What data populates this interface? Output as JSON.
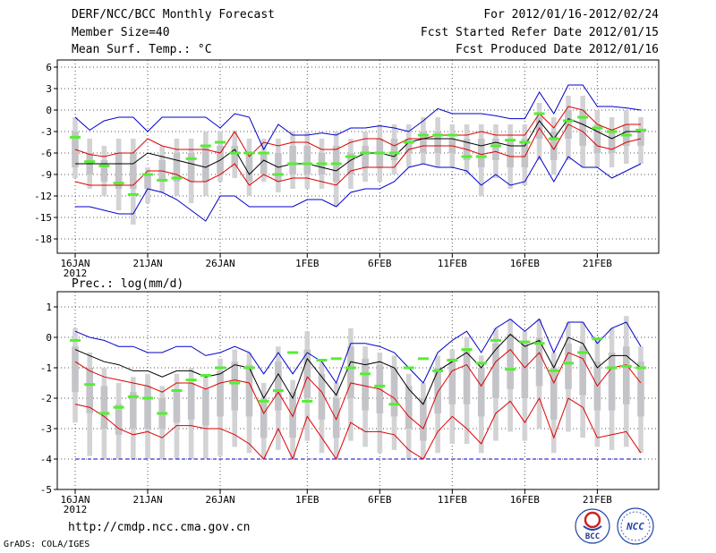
{
  "header": {
    "title": "DERF/NCC/BCC Monthly Forecast",
    "member_size": "Member Size=40",
    "variable": "Mean Surf. Temp.: °C",
    "for_range": "For 2012/01/16-2012/02/24",
    "started": "Fcst Started Refer Date 2012/01/15",
    "produced": "Fcst Produced Date 2012/01/16"
  },
  "footer": {
    "url": "http://cmdp.ncc.cma.gov.cn",
    "grads": "GrADS: COLA/IGES",
    "logo_bcc": "BCC",
    "logo_ncc": "NCC"
  },
  "colors": {
    "box": "#d3d3d6",
    "green": "#55ee33",
    "blue": "#0000cc",
    "red": "#dd0000",
    "black": "#000000",
    "grid": "#555555"
  },
  "chart_data": [
    {
      "type": "line",
      "title": "Mean Surf. Temp.: °C",
      "xlabel": "",
      "ylabel": "°C",
      "ylim": [
        -20,
        7
      ],
      "yticks": [
        6,
        3,
        0,
        -3,
        -6,
        -9,
        -12,
        -15,
        -18
      ],
      "x_ticks": [
        {
          "day": 0,
          "label": "16JAN",
          "sub": "2012"
        },
        {
          "day": 5,
          "label": "21JAN",
          "sub": ""
        },
        {
          "day": 10,
          "label": "26JAN",
          "sub": ""
        },
        {
          "day": 16,
          "label": "1FEB",
          "sub": ""
        },
        {
          "day": 21,
          "label": "6FEB",
          "sub": ""
        },
        {
          "day": 26,
          "label": "11FEB",
          "sub": ""
        },
        {
          "day": 31,
          "label": "16FEB",
          "sub": ""
        },
        {
          "day": 36,
          "label": "21FEB",
          "sub": ""
        }
      ],
      "days": [
        0,
        1,
        2,
        3,
        4,
        5,
        6,
        7,
        8,
        9,
        10,
        11,
        12,
        13,
        14,
        15,
        16,
        17,
        18,
        19,
        20,
        21,
        22,
        23,
        24,
        25,
        26,
        27,
        28,
        29,
        30,
        31,
        32,
        33,
        34,
        35,
        36,
        37,
        38,
        39
      ],
      "blue_upper": [
        -1,
        -2.8,
        -1.5,
        -1,
        -1,
        -3,
        -1,
        -1,
        -1,
        -1,
        -2.5,
        -0.5,
        -1,
        -5.5,
        -2,
        -3.5,
        -3.5,
        -3.2,
        -3.5,
        -2.5,
        -2.5,
        -2.2,
        -2.5,
        -3,
        -1.5,
        0.2,
        -0.5,
        -0.5,
        -0.5,
        -0.8,
        -1.2,
        -1.2,
        2.5,
        -0.5,
        3.5,
        3.5,
        0.5,
        0.5,
        0.3,
        0
      ],
      "red_upper": [
        -5.5,
        -6.2,
        -6.5,
        -6,
        -6,
        -4,
        -5,
        -5.5,
        -5.5,
        -5.5,
        -6,
        -3,
        -6.5,
        -4.5,
        -5,
        -4.5,
        -4.5,
        -5.5,
        -5.5,
        -4.5,
        -4,
        -4,
        -5,
        -4,
        -4,
        -3.5,
        -3.5,
        -3.5,
        -3,
        -3.5,
        -3.5,
        -3.5,
        -0.5,
        -2.5,
        0.5,
        0,
        -2,
        -2.8,
        -2,
        -2
      ],
      "black_mean": [
        -7.5,
        -7.5,
        -7.5,
        -7.5,
        -7.5,
        -6,
        -6.5,
        -7,
        -7.5,
        -8,
        -7,
        -5.5,
        -9,
        -7,
        -8,
        -7.5,
        -7.5,
        -8,
        -8.5,
        -7,
        -6,
        -6,
        -6.5,
        -4.5,
        -4,
        -4,
        -4,
        -4.5,
        -5,
        -4.5,
        -5,
        -5,
        -1.5,
        -4,
        -1.2,
        -2,
        -3,
        -4,
        -3,
        -3
      ],
      "red_lower": [
        -10,
        -10.5,
        -10.5,
        -10.5,
        -10.5,
        -8.5,
        -8.5,
        -9,
        -10,
        -10,
        -9,
        -7.5,
        -10.5,
        -9,
        -10,
        -9.5,
        -9.5,
        -10,
        -10.5,
        -8.5,
        -8,
        -8,
        -8,
        -5.5,
        -5,
        -5,
        -5,
        -5.5,
        -6.2,
        -5.8,
        -6.5,
        -6.5,
        -2.5,
        -5.5,
        -2,
        -3,
        -5,
        -5.5,
        -4.5,
        -4
      ],
      "blue_lower": [
        -13.5,
        -13.5,
        -14,
        -14.5,
        -14.5,
        -11,
        -11.5,
        -12.5,
        -14,
        -15.5,
        -12,
        -12,
        -13.5,
        -13.5,
        -13.5,
        -13.5,
        -12.5,
        -12.5,
        -13.5,
        -11.5,
        -11,
        -11,
        -10,
        -8,
        -7.5,
        -8,
        -8,
        -8.5,
        -10.5,
        -9,
        -10.5,
        -10,
        -6.5,
        -10,
        -6.5,
        -8,
        -8,
        -9.5,
        -8.5,
        -7.5
      ],
      "box_outer_top": [
        -1,
        -4,
        -5,
        -4,
        -4,
        -8,
        -5,
        -4,
        -4,
        -3,
        -3,
        -3,
        -4,
        -4,
        -4,
        -3,
        -3,
        -4,
        -3,
        -4,
        -3,
        -2,
        -2,
        -2,
        -1,
        -1,
        -2,
        -2,
        -2,
        -2,
        -2,
        -2,
        1,
        -1,
        2,
        2,
        0,
        -1,
        0,
        -1
      ],
      "box_inner_top": [
        -3,
        -6,
        -7,
        -6,
        -6,
        -9,
        -7,
        -6,
        -6,
        -5,
        -5,
        -5,
        -6,
        -6,
        -6,
        -5,
        -5,
        -6,
        -5,
        -6,
        -5,
        -4,
        -4,
        -4,
        -3,
        -3,
        -4,
        -4,
        -4,
        -4,
        -4,
        -4,
        -1,
        -3,
        0,
        0,
        -2,
        -3,
        -2,
        -3
      ],
      "box_inner_bottom": [
        -8,
        -9,
        -10,
        -11,
        -11,
        -11,
        -10,
        -10,
        -10,
        -10,
        -9,
        -8,
        -10,
        -9,
        -10,
        -9,
        -9,
        -9,
        -10,
        -9,
        -8,
        -8,
        -7,
        -6,
        -6,
        -6,
        -6,
        -7,
        -8,
        -7,
        -8,
        -8,
        -4,
        -7,
        -4,
        -5,
        -6,
        -6,
        -5,
        -5
      ],
      "box_outer_bottom": [
        -9.5,
        -11,
        -12,
        -14,
        -16,
        -13,
        -11.5,
        -12,
        -13,
        -12,
        -10,
        -9.5,
        -12,
        -10,
        -11.5,
        -11,
        -11,
        -11,
        -13.5,
        -11,
        -10,
        -10,
        -9,
        -8,
        -7.5,
        -8,
        -8,
        -9,
        -12,
        -9.5,
        -11,
        -10.5,
        -7,
        -9,
        -7,
        -8,
        -8,
        -8,
        -7.5,
        -7.5
      ],
      "green_marks": [
        -3.8,
        -7.2,
        -7.8,
        -10.2,
        -11.8,
        -9,
        -9.8,
        -9.5,
        -6.8,
        -5,
        -4.5,
        -6,
        -6,
        -6,
        -9,
        -7.5,
        -7.5,
        -7.5,
        -7.5,
        -6.5,
        -6,
        -6,
        -6,
        -4.5,
        -3.5,
        -3.5,
        -3.5,
        -6.5,
        -6.5,
        -5,
        -4.2,
        -4.5,
        -0.5,
        -4,
        -1.5,
        -1,
        -2.5,
        -3,
        -3.5,
        -2.8
      ]
    },
    {
      "type": "line",
      "title": "Prec.: log(mm/d)",
      "xlabel": "",
      "ylabel": "log(mm/d)",
      "ylim": [
        -5,
        1.5
      ],
      "yticks": [
        1,
        0,
        -1,
        -2,
        -3,
        -4,
        -5
      ],
      "x_ticks": [
        {
          "day": 0,
          "label": "16JAN",
          "sub": "2012"
        },
        {
          "day": 5,
          "label": "21JAN",
          "sub": ""
        },
        {
          "day": 10,
          "label": "26JAN",
          "sub": ""
        },
        {
          "day": 16,
          "label": "1FEB",
          "sub": ""
        },
        {
          "day": 21,
          "label": "6FEB",
          "sub": ""
        },
        {
          "day": 26,
          "label": "11FEB",
          "sub": ""
        },
        {
          "day": 31,
          "label": "16FEB",
          "sub": ""
        },
        {
          "day": 36,
          "label": "21FEB",
          "sub": ""
        }
      ],
      "days": [
        0,
        1,
        2,
        3,
        4,
        5,
        6,
        7,
        8,
        9,
        10,
        11,
        12,
        13,
        14,
        15,
        16,
        17,
        18,
        19,
        20,
        21,
        22,
        23,
        24,
        25,
        26,
        27,
        28,
        29,
        30,
        31,
        32,
        33,
        34,
        35,
        36,
        37,
        38,
        39
      ],
      "blue_upper": [
        0.2,
        0,
        -0.1,
        -0.3,
        -0.3,
        -0.5,
        -0.5,
        -0.3,
        -0.3,
        -0.6,
        -0.5,
        -0.3,
        -0.5,
        -1.2,
        -0.5,
        -1.2,
        -0.5,
        -0.8,
        -1.5,
        -0.2,
        -0.2,
        -0.3,
        -0.5,
        -1,
        -1.5,
        -0.5,
        -0.1,
        0.2,
        -0.5,
        0.3,
        0.6,
        0.2,
        0.6,
        -0.5,
        0.5,
        0.5,
        -0.2,
        0.3,
        0.5,
        -0.3
      ],
      "black_mean": [
        -0.4,
        -0.6,
        -0.8,
        -0.9,
        -1.1,
        -1.1,
        -1.3,
        -1.1,
        -1.1,
        -1.3,
        -1.2,
        -0.9,
        -1.0,
        -2.0,
        -1.2,
        -2.0,
        -0.7,
        -1.3,
        -1.9,
        -0.8,
        -0.9,
        -0.8,
        -1.0,
        -1.7,
        -2.2,
        -1.1,
        -0.8,
        -0.5,
        -1.0,
        -0.4,
        0.1,
        -0.3,
        -0.1,
        -1.0,
        0.0,
        -0.2,
        -1.0,
        -0.6,
        -0.6,
        -1.0
      ],
      "red_upper": [
        -0.8,
        -1.1,
        -1.3,
        -1.4,
        -1.5,
        -1.6,
        -1.8,
        -1.5,
        -1.5,
        -1.7,
        -1.5,
        -1.4,
        -1.5,
        -2.5,
        -1.8,
        -2.6,
        -1.3,
        -1.8,
        -2.7,
        -1.5,
        -1.6,
        -1.7,
        -2.0,
        -2.6,
        -3.0,
        -1.8,
        -1.1,
        -0.9,
        -1.6,
        -0.8,
        -0.4,
        -1.0,
        -0.5,
        -1.5,
        -0.5,
        -0.7,
        -1.6,
        -1.0,
        -0.9,
        -1.5
      ],
      "red_lower": [
        -2.2,
        -2.3,
        -2.6,
        -3.0,
        -3.2,
        -3.1,
        -3.3,
        -2.9,
        -2.9,
        -3.0,
        -3.0,
        -3.2,
        -3.5,
        -4.0,
        -3.0,
        -4.0,
        -2.6,
        -3.3,
        -4.0,
        -2.8,
        -3.1,
        -3.1,
        -3.2,
        -3.7,
        -4.0,
        -3.1,
        -2.6,
        -3.0,
        -3.5,
        -2.5,
        -2.1,
        -2.8,
        -2.0,
        -3.3,
        -2.0,
        -2.3,
        -3.3,
        -3.2,
        -3.1,
        -3.8
      ],
      "floor": -4,
      "box_outer_top": [
        0.3,
        -0.5,
        -1.0,
        -1.5,
        -1.3,
        -1.2,
        -1.6,
        -1.2,
        -1.0,
        -1.3,
        -0.7,
        -0.4,
        -0.5,
        -1.5,
        -0.3,
        -1.4,
        0.2,
        -0.8,
        -1.5,
        0.3,
        -0.3,
        -0.5,
        -0.6,
        -1.2,
        -1.5,
        -0.6,
        -0.4,
        0.0,
        -0.6,
        0.3,
        0.6,
        0.2,
        0.6,
        -0.5,
        0.5,
        0.5,
        -0.1,
        0.3,
        0.7,
        -0.3
      ],
      "box_inner_top": [
        -0.3,
        -1.0,
        -1.6,
        -2.2,
        -1.8,
        -1.6,
        -2.0,
        -1.7,
        -1.5,
        -1.7,
        -1.1,
        -0.8,
        -0.9,
        -2.0,
        -0.8,
        -1.8,
        -0.4,
        -1.2,
        -2.0,
        -0.3,
        -0.7,
        -0.9,
        -1.0,
        -1.6,
        -2.0,
        -1.0,
        -0.7,
        -0.4,
        -1.0,
        -0.2,
        0.1,
        -0.2,
        0.0,
        -1.0,
        -0.2,
        -0.3,
        -0.8,
        -0.5,
        -0.3,
        -0.8
      ],
      "box_inner_bottom": [
        -1.8,
        -2.5,
        -3.0,
        -3.2,
        -3.0,
        -3.0,
        -3.0,
        -2.8,
        -2.7,
        -2.9,
        -2.6,
        -2.4,
        -2.6,
        -3.3,
        -2.4,
        -3.3,
        -2.0,
        -2.7,
        -3.3,
        -2.0,
        -2.4,
        -2.5,
        -2.6,
        -3.0,
        -3.4,
        -2.5,
        -2.2,
        -2.2,
        -2.6,
        -2.0,
        -1.7,
        -2.0,
        -1.6,
        -2.7,
        -1.7,
        -1.9,
        -2.4,
        -2.4,
        -2.2,
        -2.6
      ],
      "box_outer_bottom": [
        -2.8,
        -3.9,
        -4.0,
        -4.0,
        -4.0,
        -4.0,
        -4.0,
        -4.0,
        -4.0,
        -4.0,
        -3.9,
        -3.6,
        -3.8,
        -4.0,
        -3.7,
        -4.0,
        -3.4,
        -3.8,
        -4.0,
        -3.4,
        -3.6,
        -3.8,
        -3.7,
        -4.0,
        -4.0,
        -3.8,
        -3.5,
        -3.5,
        -3.8,
        -3.4,
        -3.1,
        -3.4,
        -3.0,
        -3.8,
        -3.1,
        -3.3,
        -3.6,
        -3.7,
        -3.6,
        -3.8
      ],
      "green_marks": [
        -0.1,
        -1.55,
        -2.5,
        -2.3,
        -1.95,
        -2.0,
        -2.5,
        -1.75,
        -1.4,
        -1.25,
        -1.0,
        -1.5,
        -1.0,
        -2.1,
        -1.75,
        -0.5,
        -2.1,
        -0.75,
        -0.7,
        -1.0,
        -1.2,
        -1.6,
        -2.2,
        -1.0,
        -0.7,
        -1.1,
        -0.75,
        -0.4,
        -0.85,
        -0.1,
        -1.05,
        -0.15,
        -0.2,
        -1.1,
        -0.85,
        -0.5,
        -0.05,
        -1.0,
        -0.95,
        -1.0
      ]
    }
  ]
}
